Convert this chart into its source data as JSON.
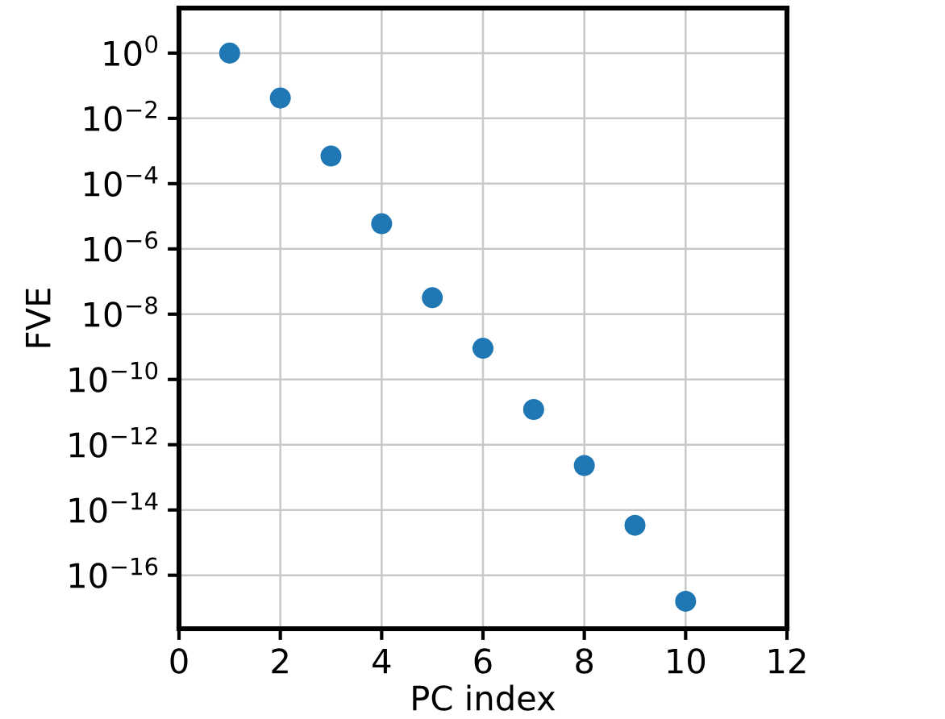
{
  "chart_data": {
    "type": "scatter",
    "xlabel": "PC index",
    "ylabel": "FVE",
    "x": [
      1,
      2,
      3,
      4,
      5,
      6,
      7,
      8,
      9,
      10
    ],
    "series": [
      {
        "color": "#1f77b4",
        "values": [
          1,
          0.042,
          0.0007,
          5.9e-06,
          3.2e-08,
          9e-10,
          1.2e-11,
          2.3e-13,
          3.4e-15,
          1.6e-17
        ]
      }
    ],
    "log": "y",
    "xlim": [
      0,
      12
    ],
    "xticks": [
      0,
      2,
      4,
      6,
      8,
      10,
      12
    ],
    "ylim": [
      2.3e-18,
      24.0
    ],
    "yticks": [
      {
        "value": 1,
        "label": "10$^{0}$"
      },
      {
        "value": 0.01,
        "label": "10$^{−2}$"
      },
      {
        "value": 0.0001,
        "label": "10$^{−4}$"
      },
      {
        "value": 1e-06,
        "label": "10$^{−6}$"
      },
      {
        "value": 1e-08,
        "label": "10$^{−8}$"
      },
      {
        "value": 1e-10,
        "label": "10$^{−10}$"
      },
      {
        "value": 1e-12,
        "label": "10$^{−12}$"
      },
      {
        "value": 1e-14,
        "label": "10$^{−14}$"
      },
      {
        "value": 1e-16,
        "label": "10$^{−16}$"
      }
    ],
    "grid": true,
    "marker": "circle"
  }
}
